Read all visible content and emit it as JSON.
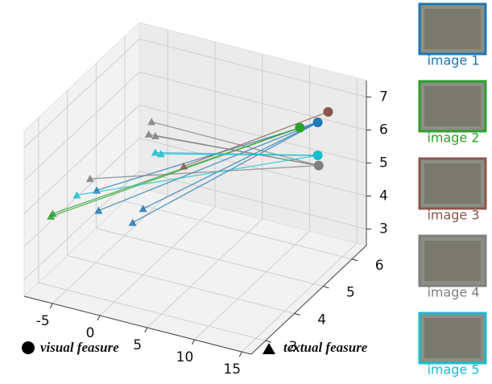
{
  "chart_data": {
    "type": "scatter3d",
    "xlim": [
      -8,
      16
    ],
    "ylim": [
      2.5,
      6.5
    ],
    "zlim": [
      2.5,
      7.5
    ],
    "xticks": [
      -5,
      0,
      5,
      10,
      15
    ],
    "yticks": [
      3,
      4,
      5,
      6
    ],
    "zticks": [
      3,
      4,
      5,
      6,
      7
    ],
    "grid": true,
    "legend": {
      "visual": "visual feasure",
      "textual": "textual feasure"
    },
    "series": [
      {
        "name": "image 1",
        "color": "#1f77b4",
        "visual": {
          "x": 13.9,
          "y": 5.5,
          "z": 6.9
        },
        "textual": {
          "x": [
            -4.9,
            -4.7,
            0.0,
            -1.1
          ],
          "y": [
            4,
            4,
            4,
            4
          ],
          "z": [
            4.7,
            4.1,
            4.5,
            4.0
          ]
        }
      },
      {
        "name": "image 2",
        "color": "#2ca02c",
        "visual": {
          "x": 12.0,
          "y": 5.5,
          "z": 6.6
        },
        "textual": {
          "x": [
            -6.7,
            -6.5
          ],
          "y": [
            3,
            3
          ],
          "z": [
            4.6,
            4.7
          ]
        }
      },
      {
        "name": "image 3",
        "color": "#8c564b",
        "visual": {
          "x": 15.0,
          "y": 5.5,
          "z": 7.3
        },
        "textual": {
          "x": [
            4.3
          ],
          "y": [
            4
          ],
          "z": [
            6.1
          ]
        }
      },
      {
        "name": "image 4",
        "color": "#7f7f7f",
        "visual": {
          "x": 14.0,
          "y": 5.5,
          "z": 5.6
        },
        "textual": {
          "x": [
            0.9,
            0.6,
            1.3,
            -5.6
          ],
          "y": [
            4,
            4,
            4,
            4
          ],
          "z": [
            7.2,
            6.8,
            6.8,
            5.0
          ]
        }
      },
      {
        "name": "image 5",
        "color": "#17becf",
        "visual": {
          "x": 13.9,
          "y": 5.5,
          "z": 5.9
        },
        "textual": {
          "x": [
            1.3,
            1.9,
            -7.0
          ],
          "y": [
            4,
            4,
            4
          ],
          "z": [
            6.3,
            6.3,
            4.4
          ]
        }
      }
    ]
  }
}
